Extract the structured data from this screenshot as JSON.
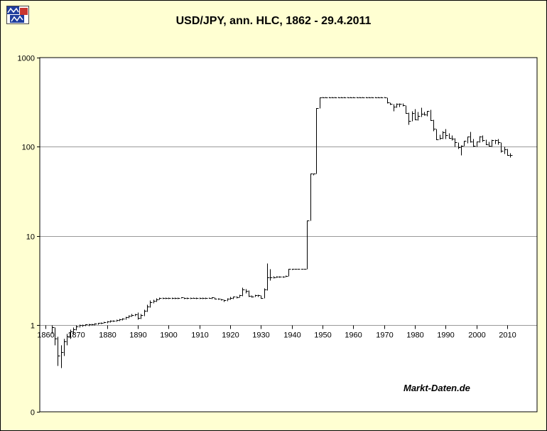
{
  "header": {
    "title": "USD/JPY, ann. HLC, 1862 - 29.4.2011"
  },
  "chart_data": {
    "type": "hlc-bar",
    "title": "USD/JPY, ann. HLC, 1862 - 29.4.2011",
    "watermark": "Markt-Daten.de",
    "y_scale": "log",
    "y_tick_labels": [
      "1000",
      "100",
      "10",
      "1",
      "0"
    ],
    "grid_values": [
      100,
      10,
      1
    ],
    "x_ticks": [
      1860,
      1870,
      1880,
      1890,
      1900,
      1910,
      1920,
      1930,
      1940,
      1950,
      1960,
      1970,
      1980,
      1990,
      2000,
      2010
    ],
    "x_axis_at_value": 1,
    "x_range_years": [
      1862,
      2011
    ],
    "y_range": [
      0.1,
      1000
    ],
    "legend": "none",
    "grid": "on",
    "columns": [
      "year",
      "high",
      "low",
      "close"
    ],
    "bars": [
      [
        1862,
        1.0,
        0.8,
        0.95
      ],
      [
        1863,
        0.95,
        0.6,
        0.7
      ],
      [
        1864,
        0.75,
        0.35,
        0.45
      ],
      [
        1865,
        0.6,
        0.33,
        0.5
      ],
      [
        1866,
        0.7,
        0.45,
        0.65
      ],
      [
        1867,
        0.8,
        0.6,
        0.75
      ],
      [
        1868,
        0.9,
        0.7,
        0.85
      ],
      [
        1869,
        0.95,
        0.8,
        0.9
      ],
      [
        1870,
        1.0,
        0.88,
        0.97
      ],
      [
        1871,
        1.02,
        0.95,
        1.0
      ],
      [
        1872,
        1.02,
        0.97,
        1.0
      ],
      [
        1873,
        1.02,
        0.98,
        1.01
      ],
      [
        1874,
        1.03,
        0.99,
        1.02
      ],
      [
        1875,
        1.04,
        1.0,
        1.02
      ],
      [
        1876,
        1.05,
        1.0,
        1.03
      ],
      [
        1877,
        1.06,
        1.02,
        1.05
      ],
      [
        1878,
        1.08,
        1.03,
        1.06
      ],
      [
        1879,
        1.1,
        1.05,
        1.08
      ],
      [
        1880,
        1.12,
        1.06,
        1.1
      ],
      [
        1881,
        1.13,
        1.08,
        1.11
      ],
      [
        1882,
        1.14,
        1.09,
        1.12
      ],
      [
        1883,
        1.16,
        1.1,
        1.14
      ],
      [
        1884,
        1.18,
        1.12,
        1.16
      ],
      [
        1885,
        1.2,
        1.14,
        1.18
      ],
      [
        1886,
        1.25,
        1.16,
        1.22
      ],
      [
        1887,
        1.3,
        1.2,
        1.27
      ],
      [
        1888,
        1.33,
        1.25,
        1.3
      ],
      [
        1889,
        1.35,
        1.28,
        1.32
      ],
      [
        1890,
        1.4,
        1.15,
        1.2
      ],
      [
        1891,
        1.35,
        1.18,
        1.3
      ],
      [
        1892,
        1.5,
        1.28,
        1.45
      ],
      [
        1893,
        1.7,
        1.42,
        1.6
      ],
      [
        1894,
        1.9,
        1.58,
        1.8
      ],
      [
        1895,
        1.95,
        1.78,
        1.88
      ],
      [
        1896,
        2.0,
        1.85,
        1.95
      ],
      [
        1897,
        2.05,
        1.93,
        2.0
      ],
      [
        1898,
        2.04,
        1.98,
        2.01
      ],
      [
        1899,
        2.04,
        1.98,
        2.02
      ],
      [
        1900,
        2.05,
        1.99,
        2.02
      ],
      [
        1901,
        2.04,
        1.99,
        2.01
      ],
      [
        1902,
        2.04,
        1.98,
        2.01
      ],
      [
        1903,
        2.05,
        1.99,
        2.02
      ],
      [
        1904,
        2.06,
        2.0,
        2.03
      ],
      [
        1905,
        2.04,
        1.99,
        2.02
      ],
      [
        1906,
        2.04,
        1.99,
        2.01
      ],
      [
        1907,
        2.05,
        1.99,
        2.02
      ],
      [
        1908,
        2.05,
        2.0,
        2.02
      ],
      [
        1909,
        2.04,
        1.99,
        2.01
      ],
      [
        1910,
        2.04,
        1.99,
        2.02
      ],
      [
        1911,
        2.04,
        1.99,
        2.01
      ],
      [
        1912,
        2.05,
        1.99,
        2.02
      ],
      [
        1913,
        2.05,
        2.0,
        2.02
      ],
      [
        1914,
        2.06,
        1.99,
        2.03
      ],
      [
        1915,
        2.06,
        1.96,
        1.98
      ],
      [
        1916,
        2.0,
        1.94,
        1.96
      ],
      [
        1917,
        1.98,
        1.9,
        1.92
      ],
      [
        1918,
        1.95,
        1.85,
        1.9
      ],
      [
        1919,
        2.0,
        1.88,
        1.97
      ],
      [
        1920,
        2.08,
        1.95,
        2.0
      ],
      [
        1921,
        2.1,
        1.98,
        2.08
      ],
      [
        1922,
        2.12,
        2.0,
        2.05
      ],
      [
        1923,
        2.2,
        2.03,
        2.15
      ],
      [
        1924,
        2.63,
        2.13,
        2.5
      ],
      [
        1925,
        2.55,
        2.3,
        2.4
      ],
      [
        1926,
        2.45,
        2.08,
        2.13
      ],
      [
        1927,
        2.18,
        2.04,
        2.1
      ],
      [
        1928,
        2.22,
        2.08,
        2.15
      ],
      [
        1929,
        2.2,
        2.1,
        2.15
      ],
      [
        1930,
        2.16,
        2.0,
        2.02
      ],
      [
        1931,
        2.6,
        2.0,
        2.5
      ],
      [
        1932,
        4.9,
        2.45,
        3.4
      ],
      [
        1933,
        4.3,
        3.2,
        3.45
      ],
      [
        1934,
        3.55,
        3.38,
        3.45
      ],
      [
        1935,
        3.52,
        3.4,
        3.47
      ],
      [
        1936,
        3.52,
        3.42,
        3.48
      ],
      [
        1937,
        3.55,
        3.43,
        3.5
      ],
      [
        1938,
        3.62,
        3.48,
        3.55
      ],
      [
        1939,
        4.3,
        3.52,
        4.27
      ],
      [
        1940,
        4.3,
        4.22,
        4.27
      ],
      [
        1941,
        4.3,
        4.24,
        4.27
      ],
      [
        1942,
        4.3,
        4.24,
        4.27
      ],
      [
        1943,
        4.3,
        4.24,
        4.27
      ],
      [
        1944,
        4.3,
        4.24,
        4.27
      ],
      [
        1945,
        15,
        4.25,
        15
      ],
      [
        1946,
        50,
        15,
        50
      ],
      [
        1947,
        50,
        48,
        50
      ],
      [
        1948,
        270,
        50,
        270
      ],
      [
        1949,
        360,
        270,
        360
      ],
      [
        1950,
        361,
        359,
        360
      ],
      [
        1951,
        361,
        359,
        360
      ],
      [
        1952,
        361,
        359,
        360
      ],
      [
        1953,
        361,
        359,
        360
      ],
      [
        1954,
        361,
        359,
        360
      ],
      [
        1955,
        361,
        359,
        360
      ],
      [
        1956,
        361,
        359,
        360
      ],
      [
        1957,
        361,
        359,
        360
      ],
      [
        1958,
        361,
        359,
        360
      ],
      [
        1959,
        361,
        359,
        360
      ],
      [
        1960,
        361,
        359,
        360
      ],
      [
        1961,
        361,
        359,
        360
      ],
      [
        1962,
        361,
        359,
        360
      ],
      [
        1963,
        361,
        359,
        360
      ],
      [
        1964,
        361,
        359,
        360
      ],
      [
        1965,
        361,
        359,
        360
      ],
      [
        1966,
        361,
        359,
        360
      ],
      [
        1967,
        361,
        359,
        360
      ],
      [
        1968,
        361,
        359,
        360
      ],
      [
        1969,
        361,
        359,
        360
      ],
      [
        1970,
        361,
        359,
        360
      ],
      [
        1971,
        360,
        308,
        315
      ],
      [
        1972,
        315,
        295,
        302
      ],
      [
        1973,
        302,
        254,
        280
      ],
      [
        1974,
        306,
        274,
        301
      ],
      [
        1975,
        307,
        284,
        305
      ],
      [
        1976,
        306,
        286,
        293
      ],
      [
        1977,
        293,
        238,
        240
      ],
      [
        1978,
        242,
        177,
        195
      ],
      [
        1979,
        251,
        194,
        240
      ],
      [
        1980,
        264,
        202,
        203
      ],
      [
        1981,
        247,
        198,
        220
      ],
      [
        1982,
        278,
        217,
        235
      ],
      [
        1983,
        247,
        227,
        232
      ],
      [
        1984,
        252,
        220,
        252
      ],
      [
        1985,
        263,
        199,
        200
      ],
      [
        1986,
        203,
        152,
        160
      ],
      [
        1987,
        159,
        121,
        122
      ],
      [
        1988,
        137,
        120,
        125
      ],
      [
        1989,
        151,
        123,
        144
      ],
      [
        1990,
        160,
        124,
        135
      ],
      [
        1991,
        142,
        125,
        125
      ],
      [
        1992,
        135,
        119,
        124
      ],
      [
        1993,
        126,
        100,
        112
      ],
      [
        1994,
        113,
        96,
        99
      ],
      [
        1995,
        104,
        80,
        103
      ],
      [
        1996,
        116,
        103,
        116
      ],
      [
        1997,
        131,
        110,
        130
      ],
      [
        1998,
        147,
        112,
        115
      ],
      [
        1999,
        124,
        101,
        102
      ],
      [
        2000,
        115,
        101,
        114
      ],
      [
        2001,
        132,
        113,
        131
      ],
      [
        2002,
        135,
        115,
        118
      ],
      [
        2003,
        121,
        107,
        107
      ],
      [
        2004,
        114,
        102,
        102
      ],
      [
        2005,
        121,
        101,
        118
      ],
      [
        2006,
        120,
        109,
        119
      ],
      [
        2007,
        124,
        107,
        112
      ],
      [
        2008,
        112,
        87,
        90
      ],
      [
        2009,
        101,
        84,
        93
      ],
      [
        2010,
        95,
        80,
        81
      ],
      [
        2011,
        85,
        76,
        81
      ]
    ],
    "colors": {
      "background": "#FFFFD2",
      "plot_bg": "#FFFFFF",
      "bar": "#000000",
      "grid": "#999999",
      "border": "#000000",
      "logo_blue": "#1F3E9E",
      "logo_red": "#C9372F"
    }
  }
}
